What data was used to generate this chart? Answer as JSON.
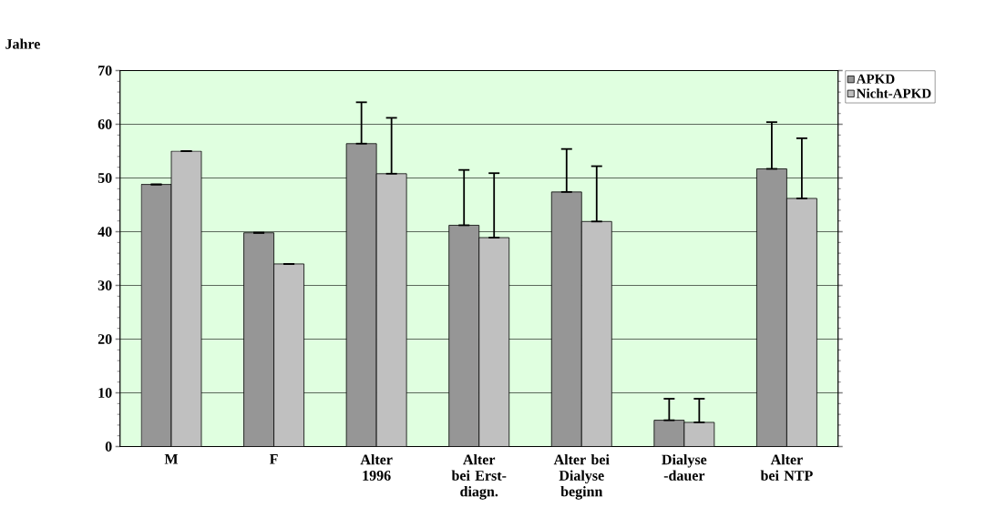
{
  "chart_data": {
    "type": "bar",
    "ylabel": "Jahre",
    "categories": [
      "M",
      "F",
      "Alter 1996",
      "Alter bei Erst-diagn.",
      "Alter bei Dialyse beginn",
      "Dialyse -dauer",
      "Alter bei NTP"
    ],
    "series": [
      {
        "name": "APKD",
        "color": "#969696",
        "values": [
          48.8,
          39.8,
          56.4,
          41.2,
          47.4,
          4.9,
          51.7
        ],
        "errors": [
          null,
          null,
          [
            56.4,
            64.1
          ],
          [
            41.2,
            51.5
          ],
          [
            47.4,
            55.4
          ],
          [
            4.9,
            8.9
          ],
          [
            51.7,
            60.4
          ]
        ]
      },
      {
        "name": "Nicht-APKD",
        "color": "#c0c0c0",
        "values": [
          55,
          34,
          50.8,
          38.9,
          41.9,
          4.5,
          46.2
        ],
        "errors": [
          null,
          null,
          [
            50.8,
            61.2
          ],
          [
            38.9,
            50.9
          ],
          [
            41.9,
            52.2
          ],
          [
            4.5,
            8.9
          ],
          [
            46.2,
            57.4
          ]
        ]
      }
    ],
    "ylim": [
      0,
      70
    ],
    "yticks": [
      0,
      10,
      20,
      30,
      40,
      50,
      60,
      70
    ],
    "grid": "y",
    "legend": "top right"
  }
}
